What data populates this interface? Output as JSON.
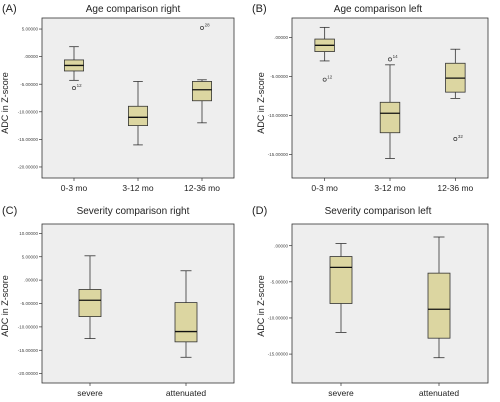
{
  "chart_data": [
    {
      "type": "box",
      "panel_letter": "(A)",
      "title": "Age comparison right",
      "ylabel": "ADC in Z-score",
      "ylim": [
        -22,
        7
      ],
      "yticks": [
        5,
        0,
        -5,
        -10,
        -15,
        -20
      ],
      "ytick_labels": [
        "5.00000",
        ".00000",
        "-5.00000",
        "-10.00000",
        "-15.00000",
        "-20.00000"
      ],
      "categories": [
        "0-3 mo",
        "3-12 mo",
        "12-36 mo"
      ],
      "boxes": [
        {
          "min": -4.3,
          "q1": -2.6,
          "median": -1.6,
          "q3": -0.6,
          "max": 1.8
        },
        {
          "min": -16.0,
          "q1": -12.5,
          "median": -11.0,
          "q3": -9.0,
          "max": -4.5
        },
        {
          "min": -12.0,
          "q1": -8.0,
          "median": -6.0,
          "q3": -4.5,
          "max": -4.2
        }
      ],
      "outliers": [
        {
          "category": "0-3 mo",
          "y": -5.7,
          "label": "12"
        },
        {
          "category": "12-36 mo",
          "y": 5.2,
          "label": "28"
        }
      ]
    },
    {
      "type": "box",
      "panel_letter": "(B)",
      "title": "Age comparison  left",
      "ylabel": "ADC in Z-score",
      "ylim": [
        -18,
        2.5
      ],
      "yticks": [
        0,
        -5,
        -10,
        -15
      ],
      "ytick_labels": [
        ".00000",
        "-5.00000",
        "-10.00000",
        "-15.00000"
      ],
      "categories": [
        "0-3 mo",
        "3-12 mo",
        "12-36 mo"
      ],
      "boxes": [
        {
          "min": -3.0,
          "q1": -1.8,
          "median": -1.0,
          "q3": -0.2,
          "max": 1.3
        },
        {
          "min": -15.5,
          "q1": -12.2,
          "median": -9.7,
          "q3": -8.3,
          "max": -3.5
        },
        {
          "min": -7.8,
          "q1": -7.0,
          "median": -5.2,
          "q3": -3.3,
          "max": -1.5
        }
      ],
      "outliers": [
        {
          "category": "0-3 mo",
          "y": -5.4,
          "label": "12"
        },
        {
          "category": "3-12 mo",
          "y": -2.8,
          "label": "14"
        },
        {
          "category": "12-36 mo",
          "y": -13.0,
          "label": "32"
        }
      ]
    },
    {
      "type": "box",
      "panel_letter": "(C)",
      "title": "Severity comparison right",
      "ylabel": "ADC in Z-score",
      "ylim": [
        -22,
        12
      ],
      "yticks": [
        10,
        5,
        0,
        -5,
        -10,
        -15,
        -20
      ],
      "ytick_labels": [
        "10.00000",
        "5.00000",
        ".00000",
        "-5.00000",
        "-10.00000",
        "-15.00000",
        "-20.00000"
      ],
      "categories": [
        "severe",
        "attenuated"
      ],
      "boxes": [
        {
          "min": -12.5,
          "q1": -7.8,
          "median": -4.3,
          "q3": -2.0,
          "max": 5.2
        },
        {
          "min": -16.5,
          "q1": -13.2,
          "median": -11.0,
          "q3": -4.8,
          "max": 2.0
        }
      ],
      "outliers": []
    },
    {
      "type": "box",
      "panel_letter": "(D)",
      "title": "Severity comparison left",
      "ylabel": "ADC in Z-score",
      "ylim": [
        -19,
        3
      ],
      "yticks": [
        0,
        -5,
        -10,
        -15
      ],
      "ytick_labels": [
        ".00000",
        "-5.00000",
        "-10.00000",
        "-15.00000"
      ],
      "categories": [
        "severe",
        "attenuated"
      ],
      "boxes": [
        {
          "min": -12.0,
          "q1": -8.0,
          "median": -3.0,
          "q3": -1.5,
          "max": 0.3
        },
        {
          "min": -15.5,
          "q1": -12.8,
          "median": -8.8,
          "q3": -3.8,
          "max": 1.2
        }
      ],
      "outliers": []
    }
  ]
}
